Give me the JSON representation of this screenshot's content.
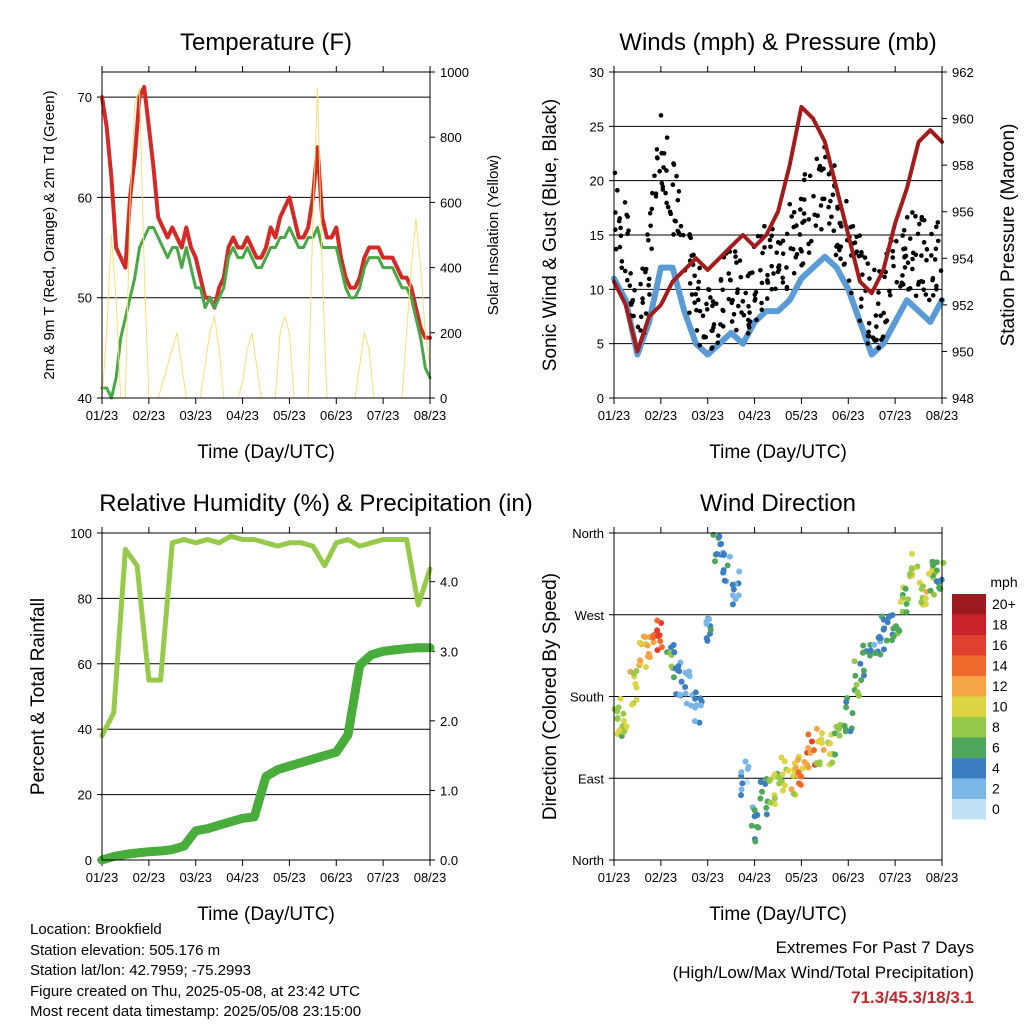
{
  "ticks_x": [
    "01/23",
    "02/23",
    "03/23",
    "04/23",
    "05/23",
    "06/23",
    "07/23",
    "08/23"
  ],
  "temperature": {
    "title": "Temperature (F)",
    "ylabel_left": "2m & 9m T (Red, Orange) & 2m Td (Green)",
    "ylabel_right": "Solar Insolation (Yellow)",
    "xlabel": "Time (Day/UTC)",
    "yticks_left": [
      "40",
      "50",
      "60",
      "70"
    ],
    "yticks_right": [
      "0",
      "200",
      "400",
      "600",
      "800",
      "1000"
    ]
  },
  "winds": {
    "title": "Winds (mph) & Pressure (mb)",
    "ylabel_left": "Sonic Wind & Gust (Blue, Black)",
    "ylabel_right": "Station Pressure (Maroon)",
    "xlabel": "Time (Day/UTC)",
    "yticks_left": [
      "0",
      "5",
      "10",
      "15",
      "20",
      "25",
      "30"
    ],
    "yticks_right": [
      "948",
      "950",
      "952",
      "954",
      "956",
      "958",
      "960",
      "962"
    ]
  },
  "humidity": {
    "title": "Relative Humidity (%) & Precipitation (in)",
    "ylabel_left": "Percent & Total Rainfall",
    "xlabel": "Time (Day/UTC)",
    "yticks_left": [
      "0",
      "20",
      "40",
      "60",
      "80",
      "100"
    ],
    "yticks_right": [
      "0.0",
      "1.0",
      "2.0",
      "3.0",
      "4.0"
    ]
  },
  "direction": {
    "title": "Wind Direction",
    "ylabel_left": "Direction (Colored By Speed)",
    "xlabel": "Time (Day/UTC)",
    "yticks_left": [
      "North",
      "East",
      "South",
      "West",
      "North"
    ],
    "legend_title": "mph",
    "legend_labels": [
      "20+",
      "18",
      "16",
      "14",
      "12",
      "10",
      "8",
      "6",
      "4",
      "2",
      "0"
    ],
    "legend_colors": [
      "#9b1b1e",
      "#c9222a",
      "#e0402f",
      "#f06a2e",
      "#f6a546",
      "#dcd442",
      "#96c84a",
      "#4ea75a",
      "#3b7fc1",
      "#7ab6e6",
      "#bfe2f6"
    ]
  },
  "info": {
    "location": "Location: Brookfield",
    "elevation": "Station elevation: 505.176 m",
    "latlon": "Station lat/lon: 42.7959; -75.2993",
    "created": "Figure created on Thu, 2025-05-08, at 23:42 UTC",
    "recent": "Most recent data timestamp: 2025/05/08 23:15:00",
    "extremes_title": "Extremes For Past 7 Days",
    "extremes_sub": "(High/Low/Max Wind/Total Precipitation)",
    "extremes_value": "71.3/45.3/18/3.1"
  },
  "chart_data": [
    {
      "type": "line",
      "title": "Temperature (F)",
      "xlabel": "Time (Day/UTC)",
      "ylabel": "2m & 9m T (Red, Orange) & 2m Td (Green)",
      "ylabel_right": "Solar Insolation (Yellow)",
      "x": [
        0,
        0.1,
        0.2,
        0.3,
        0.4,
        0.5,
        0.6,
        0.7,
        0.8,
        0.9,
        1.0,
        1.1,
        1.2,
        1.3,
        1.4,
        1.5,
        1.6,
        1.7,
        1.8,
        1.9,
        2.0,
        2.1,
        2.2,
        2.3,
        2.4,
        2.5,
        2.6,
        2.7,
        2.8,
        2.9,
        3.0,
        3.1,
        3.2,
        3.3,
        3.4,
        3.5,
        3.6,
        3.7,
        3.8,
        3.9,
        4.0,
        4.1,
        4.2,
        4.3,
        4.4,
        4.5,
        4.6,
        4.7,
        4.8,
        4.9,
        5.0,
        5.1,
        5.2,
        5.3,
        5.4,
        5.5,
        5.6,
        5.7,
        5.8,
        5.9,
        6.0,
        6.1,
        6.2,
        6.3,
        6.4,
        6.5,
        6.6,
        6.7,
        6.8,
        6.9,
        7.0
      ],
      "ylim": [
        40,
        72.5
      ],
      "ylim_right": [
        0,
        1000
      ],
      "series": [
        {
          "name": "2m T",
          "color": "#d42a27",
          "values": [
            70,
            67,
            62,
            55,
            54,
            53,
            60,
            64,
            70,
            71,
            67,
            63,
            58,
            57,
            56,
            57,
            56,
            55,
            57,
            55,
            54,
            52,
            50,
            50,
            49,
            51,
            52,
            55,
            56,
            55,
            55,
            56,
            55,
            54,
            54,
            55,
            57,
            56,
            58,
            59,
            60,
            58,
            56,
            56,
            57,
            60,
            65,
            58,
            56,
            56,
            57,
            54,
            52,
            51,
            51,
            52,
            54,
            55,
            55,
            55,
            54,
            54,
            54,
            53,
            52,
            52,
            51,
            49,
            47,
            46,
            46
          ]
        },
        {
          "name": "2m Td",
          "color": "#48a845",
          "values": [
            41,
            41,
            40,
            42,
            46,
            48,
            50,
            52,
            55,
            56,
            57,
            57,
            56,
            55,
            54,
            55,
            55,
            53,
            55,
            53,
            51,
            51,
            49,
            50,
            49,
            50,
            51,
            54,
            55,
            54,
            54,
            55,
            54,
            53,
            53,
            54,
            55,
            55,
            56,
            56,
            57,
            56,
            55,
            55,
            56,
            56,
            57,
            55,
            55,
            55,
            55,
            53,
            51,
            50,
            50,
            51,
            53,
            54,
            54,
            54,
            53,
            53,
            53,
            52,
            51,
            51,
            50,
            48,
            46,
            43,
            42
          ]
        },
        {
          "name": "Solar Insolation",
          "color": "#f7e06e",
          "axis": "right",
          "values": [
            0,
            200,
            500,
            300,
            0,
            0,
            600,
            900,
            950,
            400,
            0,
            0,
            0,
            50,
            100,
            150,
            200,
            100,
            0,
            0,
            0,
            0,
            100,
            200,
            250,
            150,
            0,
            0,
            0,
            0,
            50,
            150,
            200,
            100,
            0,
            0,
            0,
            0,
            200,
            250,
            200,
            0,
            0,
            0,
            0,
            550,
            950,
            400,
            0,
            0,
            0,
            0,
            0,
            0,
            0,
            100,
            200,
            150,
            0,
            0,
            0,
            0,
            0,
            0,
            0,
            200,
            400,
            550,
            400,
            200,
            100
          ]
        }
      ]
    },
    {
      "type": "line",
      "title": "Winds (mph) & Pressure (mb)",
      "xlabel": "Time (Day/UTC)",
      "ylabel": "Sonic Wind & Gust (Blue, Black)",
      "ylabel_right": "Station Pressure (Maroon)",
      "ylim": [
        0,
        30
      ],
      "ylim_right": [
        948,
        962
      ],
      "x": [
        0,
        0.25,
        0.5,
        0.75,
        1.0,
        1.25,
        1.5,
        1.75,
        2.0,
        2.25,
        2.5,
        2.75,
        3.0,
        3.25,
        3.5,
        3.75,
        4.0,
        4.25,
        4.5,
        4.75,
        5.0,
        5.25,
        5.5,
        5.75,
        6.0,
        6.25,
        6.5,
        6.75,
        7.0
      ],
      "series": [
        {
          "name": "Sonic Wind",
          "color": "#5a9bd5",
          "values": [
            11,
            9,
            4,
            7,
            12,
            12,
            8,
            5,
            4,
            5,
            6,
            5,
            7,
            8,
            8,
            9,
            11,
            12,
            13,
            12,
            10,
            7,
            4,
            5,
            7,
            9,
            8,
            7,
            9
          ]
        },
        {
          "name": "Gust",
          "color": "#000000",
          "values": [
            18,
            14,
            7,
            12,
            24,
            19,
            13,
            9,
            8,
            9,
            10,
            9,
            11,
            12,
            12,
            14,
            16,
            18,
            20,
            17,
            14,
            11,
            8,
            9,
            12,
            14,
            13,
            12,
            13
          ]
        },
        {
          "name": "Station Pressure",
          "color": "#a31b1b",
          "axis": "right",
          "values": [
            953,
            952,
            950,
            951.5,
            952,
            953,
            953.5,
            954,
            953.5,
            954,
            954.5,
            955,
            954.5,
            955,
            956,
            958,
            960.5,
            960,
            959,
            957,
            955,
            953,
            952.5,
            953.5,
            955.5,
            957,
            959,
            959.5,
            959
          ]
        }
      ]
    },
    {
      "type": "line",
      "title": "Relative Humidity (%) & Precipitation (in)",
      "xlabel": "Time (Day/UTC)",
      "ylabel": "Percent & Total Rainfall",
      "ylim": [
        0,
        100
      ],
      "ylim_right": [
        0,
        4.7
      ],
      "x": [
        0,
        0.25,
        0.5,
        0.75,
        1.0,
        1.25,
        1.5,
        1.75,
        2.0,
        2.25,
        2.5,
        2.75,
        3.0,
        3.25,
        3.5,
        3.75,
        4.0,
        4.25,
        4.5,
        4.75,
        5.0,
        5.25,
        5.5,
        5.75,
        6.0,
        6.25,
        6.5,
        6.75,
        7.0
      ],
      "series": [
        {
          "name": "Relative Humidity",
          "color": "#97c94b",
          "values": [
            38,
            45,
            95,
            90,
            55,
            55,
            97,
            98,
            97,
            98,
            97,
            99,
            98,
            98,
            97,
            96,
            97,
            97,
            96,
            90,
            97,
            98,
            96,
            97,
            98,
            98,
            98,
            78,
            89
          ]
        },
        {
          "name": "Total Precipitation",
          "color": "#49ad3b",
          "axis": "right",
          "values": [
            0,
            0.05,
            0.08,
            0.1,
            0.12,
            0.13,
            0.15,
            0.2,
            0.42,
            0.45,
            0.5,
            0.55,
            0.6,
            0.62,
            1.2,
            1.3,
            1.35,
            1.4,
            1.45,
            1.5,
            1.55,
            1.8,
            2.8,
            2.95,
            3.0,
            3.02,
            3.04,
            3.05,
            3.05
          ]
        }
      ]
    },
    {
      "type": "scatter",
      "title": "Wind Direction",
      "xlabel": "Time (Day/UTC)",
      "ylabel": "Direction (Colored By Speed)",
      "ylim": [
        0,
        360
      ],
      "yticks": [
        "North",
        "East",
        "South",
        "West",
        "North"
      ],
      "x": [
        0.1,
        0.2,
        0.4,
        0.6,
        0.8,
        1.0,
        1.2,
        1.4,
        1.6,
        1.8,
        2.0,
        2.2,
        2.4,
        2.6,
        2.8,
        3.0,
        3.2,
        3.4,
        3.6,
        3.8,
        4.0,
        4.2,
        4.4,
        4.6,
        4.8,
        5.0,
        5.2,
        5.4,
        5.6,
        5.8,
        6.0,
        6.2,
        6.4,
        6.6,
        6.8,
        6.95
      ],
      "series": [
        {
          "name": "Direction",
          "values": [
            150,
            160,
            190,
            230,
            240,
            250,
            220,
            200,
            190,
            170,
            260,
            340,
            320,
            300,
            90,
            40,
            70,
            80,
            95,
            90,
            100,
            120,
            125,
            120,
            130,
            160,
            200,
            220,
            240,
            250,
            260,
            290,
            320,
            300,
            310,
            310
          ],
          "speed": [
            8,
            9,
            10,
            11,
            13,
            15,
            6,
            4,
            3,
            3,
            4,
            5,
            4,
            3,
            2,
            4,
            5,
            8,
            9,
            10,
            12,
            14,
            10,
            9,
            7,
            5,
            6,
            5,
            4,
            4,
            6,
            8,
            9,
            10,
            8,
            6
          ]
        }
      ]
    }
  ]
}
